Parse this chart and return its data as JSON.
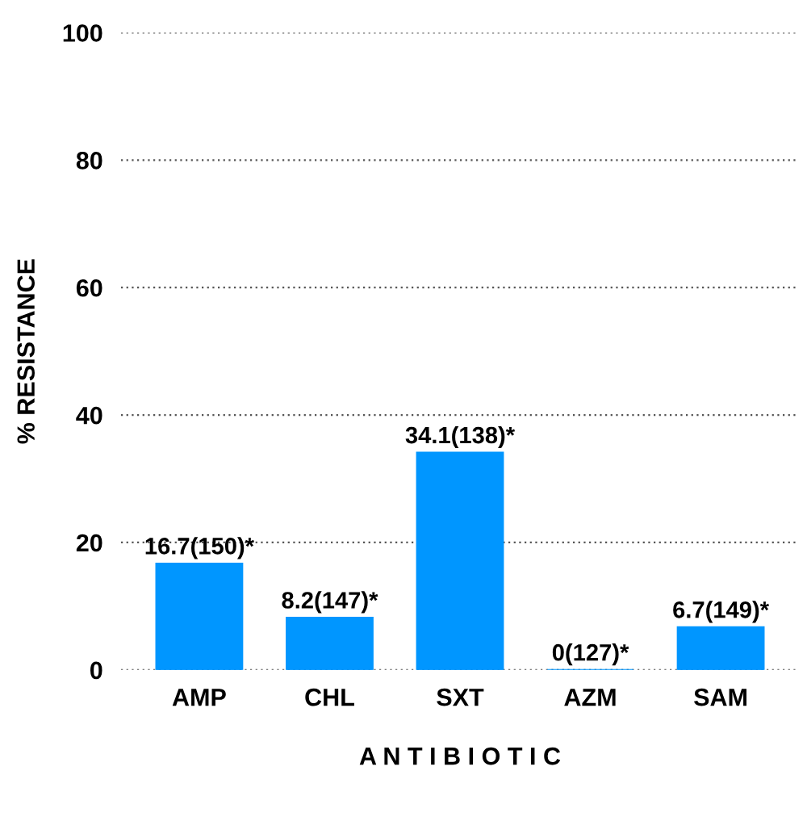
{
  "chart_data": {
    "type": "bar",
    "xlabel": "A N T I B I O T I C",
    "ylabel": "% RESISTANCE",
    "categories": [
      "AMP",
      "CHL",
      "SXT",
      "AZM",
      "SAM"
    ],
    "values": [
      16.7,
      8.2,
      34.1,
      0,
      6.7
    ],
    "value_labels": [
      "16.7(150)*",
      "8.2(147)*",
      "34.1(138)*",
      "0(127)*",
      "6.7(149)*"
    ],
    "color": "#0096ff",
    "ylim": [
      0,
      100
    ],
    "yticks": [
      0,
      20,
      40,
      60,
      80,
      100
    ],
    "grid": "y",
    "legend": false
  }
}
